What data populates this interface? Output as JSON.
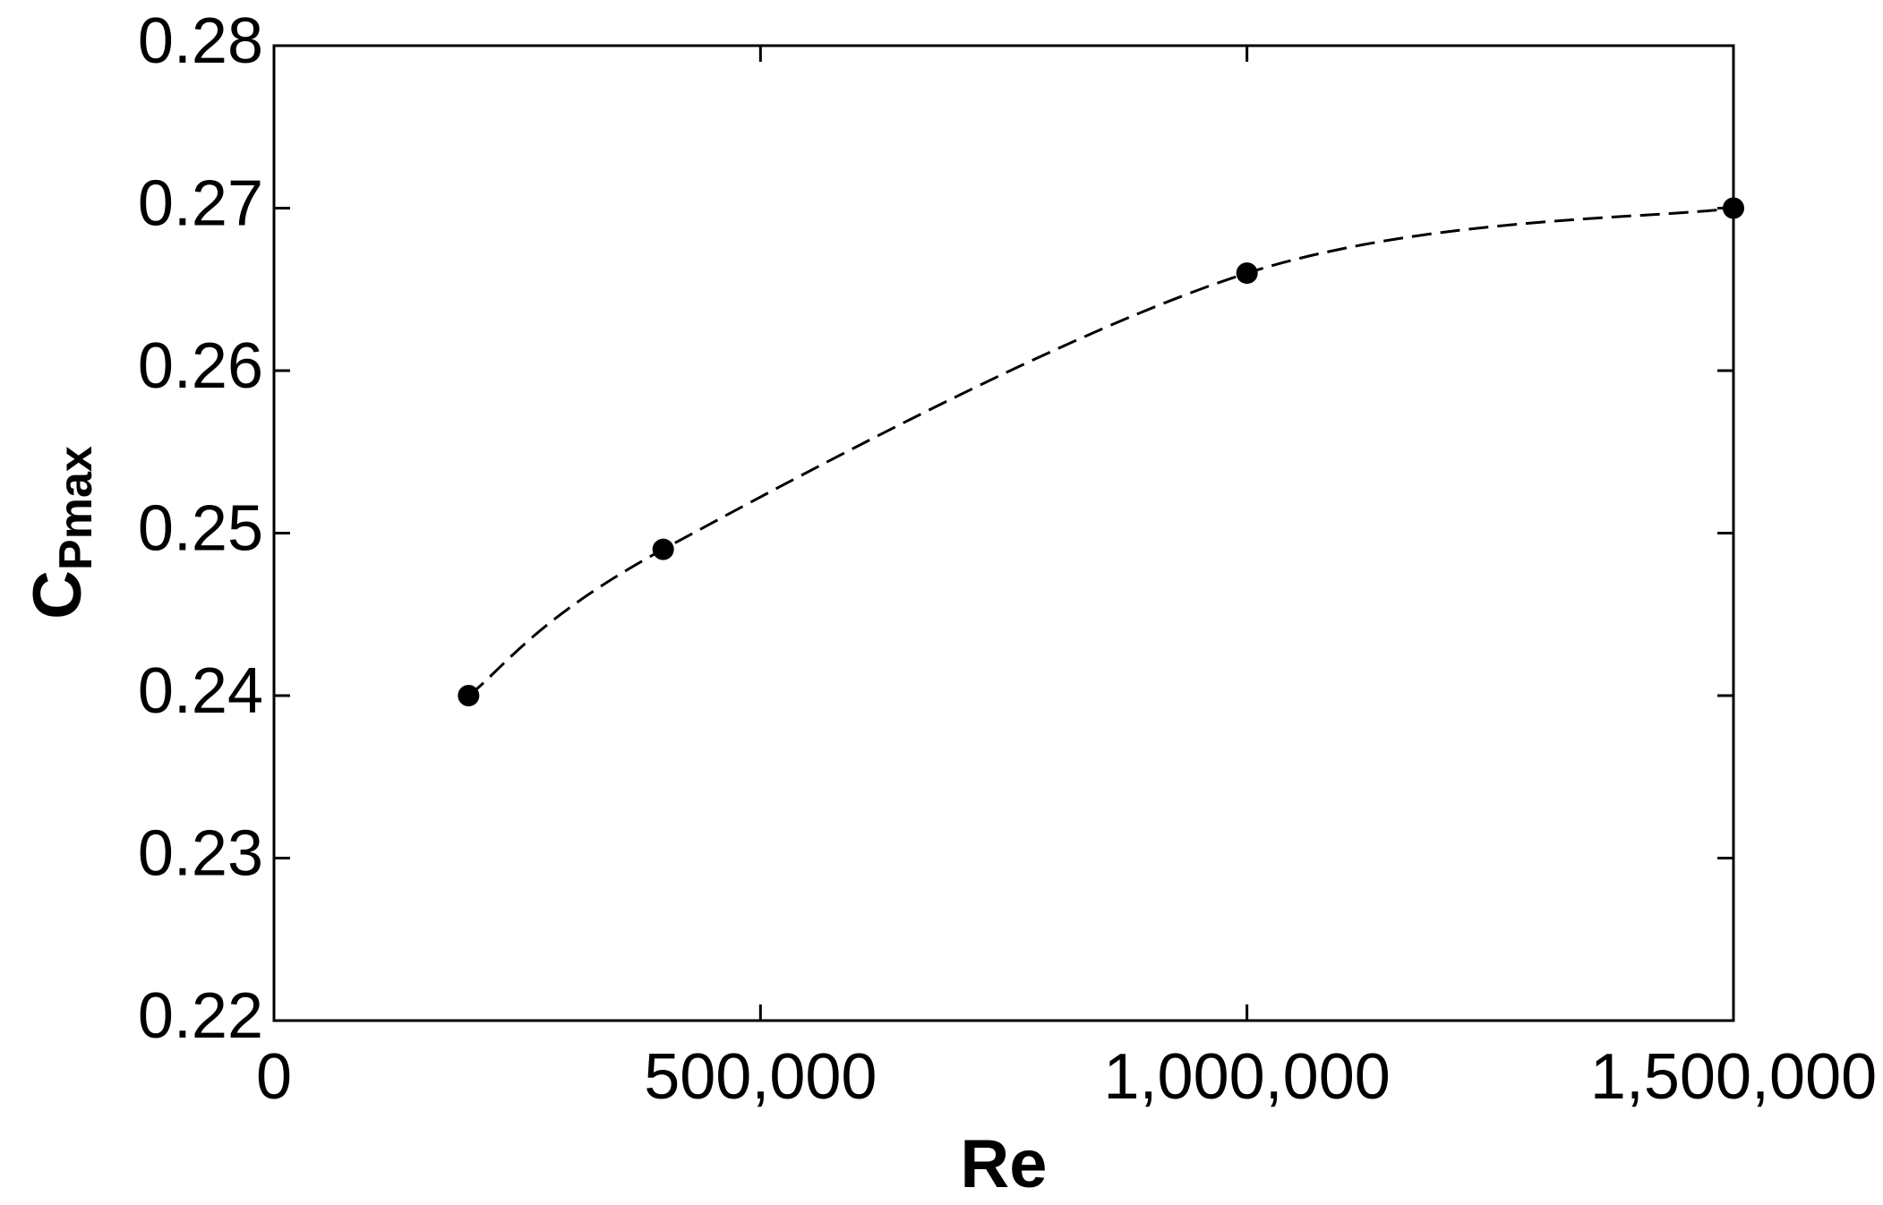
{
  "chart_data": {
    "type": "line",
    "x_label": "Re",
    "y_label": "C",
    "y_label_sub": "Pmax",
    "x": [
      200000,
      400000,
      1000000,
      1500000
    ],
    "series": [
      {
        "color": "#000000",
        "values": [
          0.24,
          0.249,
          0.266,
          0.27
        ]
      }
    ],
    "line_style": "dashed",
    "markers": true,
    "xlim": [
      0,
      1500000
    ],
    "xticks": [
      0,
      {
        "value": 500000,
        "label": "500,000"
      },
      {
        "value": 1000000,
        "label": "1,000,000"
      },
      {
        "value": 1500000,
        "label": "1,500,000"
      }
    ],
    "ylim": [
      0.22,
      0.28
    ],
    "yticks": [
      0.22,
      0.23,
      0.24,
      0.25,
      0.26,
      0.27,
      0.28
    ],
    "grid": false
  }
}
